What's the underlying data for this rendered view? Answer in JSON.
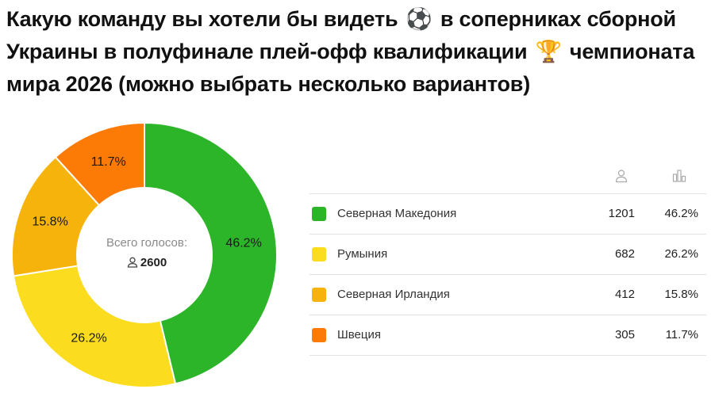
{
  "title": {
    "part1": "Какую команду вы хотели бы видеть",
    "part2": "в соперниках сборной Украины в полуфинале плей-офф квалификации",
    "part3": "чемпионата мира 2026 (можно выбрать несколько вариантов)",
    "emoji_1": "soccer-ball-icon",
    "emoji_2": "trophy-icon"
  },
  "center": {
    "caption": "Всего голосов:",
    "total": "2600",
    "icon": "person-icon"
  },
  "table_header": {
    "votes_icon": "person-icon",
    "percent_icon": "bar-chart-icon"
  },
  "chart_data": {
    "type": "pie",
    "style": "donut",
    "total_votes": 2600,
    "categories": [
      "Северная Македония",
      "Румыния",
      "Северная Ирландия",
      "Швеция"
    ],
    "votes": [
      1201,
      682,
      412,
      305
    ],
    "values": [
      46.2,
      26.2,
      15.8,
      11.7
    ],
    "value_labels": [
      "46.2%",
      "26.2%",
      "15.8%",
      "11.7%"
    ],
    "colors": [
      "#2db52a",
      "#fcdc1f",
      "#f6b30b",
      "#fc7b06"
    ],
    "legend_placement": "right"
  }
}
